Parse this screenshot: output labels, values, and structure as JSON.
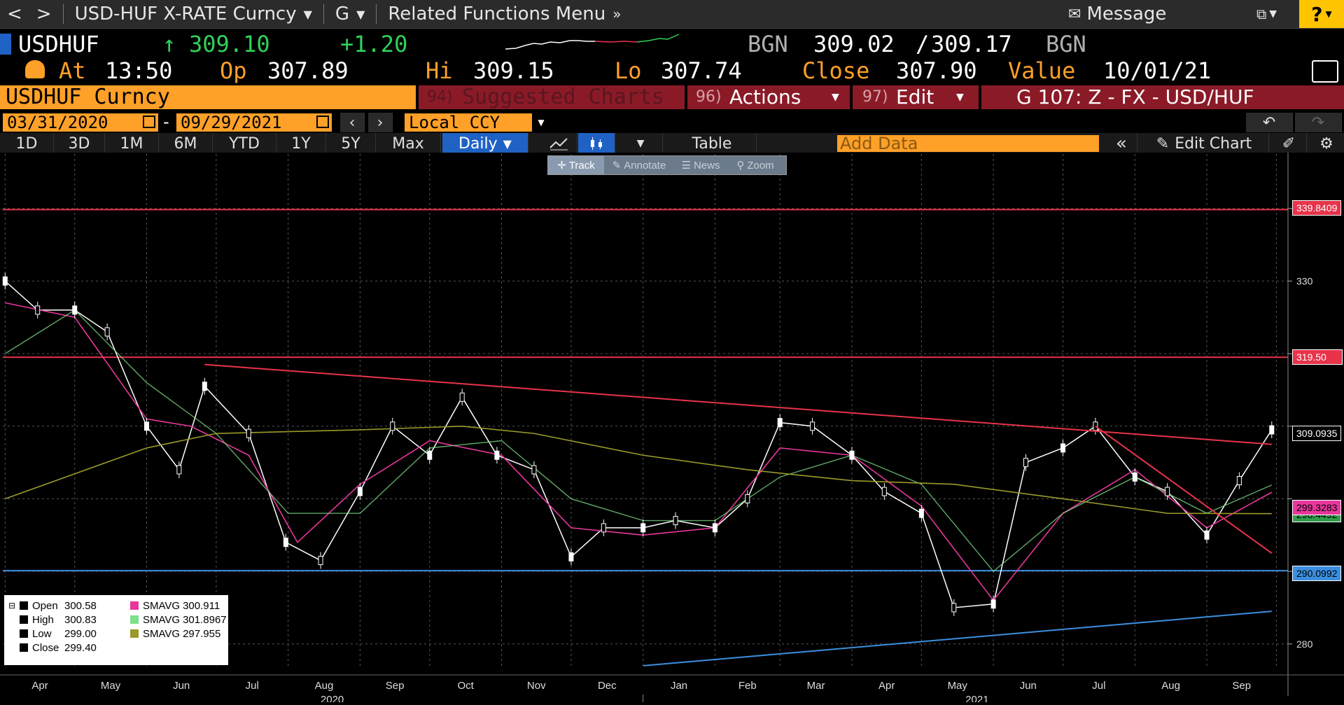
{
  "menubar": {
    "back": "<",
    "forward": ">",
    "security": "USD-HUF X-RATE Curncy",
    "function": "G",
    "related": "Related Functions Menu",
    "message": "Message",
    "help": "?"
  },
  "quote": {
    "ticker": "USDHUF",
    "last": "309.10",
    "last_arrow": "↑",
    "change": "+1.20",
    "source1": "BGN",
    "bid": "309.02",
    "ask": "309.17",
    "source2": "BGN",
    "at_label": "At",
    "time": "13:50",
    "op_label": "Op",
    "open": "307.89",
    "hi_label": "Hi",
    "high": "309.15",
    "lo_label": "Lo",
    "low": "307.74",
    "close_label": "Close",
    "close": "307.90",
    "value_label": "Value",
    "value_date": "10/01/21"
  },
  "bars": {
    "security": "USDHUF Curncy",
    "suggested_num": "94)",
    "suggested": "Suggested Charts",
    "actions_num": "96)",
    "actions": "Actions",
    "edit_num": "97)",
    "edit": "Edit",
    "template": "G 107: Z - FX - USD/HUF"
  },
  "dates": {
    "start": "03/31/2020",
    "dash": "-",
    "end": "09/29/2021",
    "currency": "Local CCY"
  },
  "periods": [
    "1D",
    "3D",
    "1M",
    "6M",
    "YTD",
    "1Y",
    "5Y",
    "Max"
  ],
  "frequency": "Daily",
  "toolbar": {
    "table": "Table",
    "add_data_placeholder": "Add Data",
    "edit_chart": "Edit Chart"
  },
  "tools": [
    "Track",
    "Annotate",
    "News",
    "Zoom"
  ],
  "colors": {
    "orange": "#ffa028",
    "red_bar": "#8b1a27",
    "price": "#ffffff",
    "sma_fast": "#e8369c",
    "sma_mid": "#7de08a",
    "sma_slow": "#9a9a2a",
    "resistance": "#e8334a",
    "support": "#3b8fe0"
  },
  "axis_tags": {
    "r1": "339.8409",
    "r2": "319.50",
    "last": "309.0935",
    "sma": "299.3283",
    "sma2": "298.4492",
    "support": "290.0992"
  },
  "legend": {
    "open_label": "Open",
    "open": "300.58",
    "high_label": "High",
    "high": "300.83",
    "low_label": "Low",
    "low": "299.00",
    "close_label": "Close",
    "close": "299.40",
    "sma1_label": "SMAVG",
    "sma1": "300.911",
    "sma2_label": "SMAVG",
    "sma2": "301.8967",
    "sma3_label": "SMAVG",
    "sma3": "297.955"
  },
  "chart_data": {
    "type": "line",
    "subtype": "candlestick",
    "x_months": [
      "Apr",
      "May",
      "Jun",
      "Jul",
      "Aug",
      "Sep",
      "Oct",
      "Nov",
      "Dec",
      "Jan",
      "Feb",
      "Mar",
      "Apr",
      "May",
      "Jun",
      "Jul",
      "Aug",
      "Sep"
    ],
    "x_years": [
      "2020",
      "2021"
    ],
    "y_ticks": [
      280,
      290,
      300,
      310,
      320,
      330,
      340
    ],
    "y_tick_labels": [
      "280",
      "",
      "",
      "",
      "",
      "330",
      ""
    ],
    "ylim": [
      276.7,
      347.5
    ],
    "grid": true,
    "series": [
      {
        "name": "USDHUF",
        "x": [
          "2020-04-01",
          "2020-04-15",
          "2020-05-01",
          "2020-05-15",
          "2020-06-01",
          "2020-06-15",
          "2020-06-26",
          "2020-07-15",
          "2020-07-31",
          "2020-08-15",
          "2020-09-01",
          "2020-09-15",
          "2020-10-01",
          "2020-10-15",
          "2020-10-30",
          "2020-11-15",
          "2020-12-01",
          "2020-12-15",
          "2021-01-01",
          "2021-01-15",
          "2021-02-01",
          "2021-02-15",
          "2021-03-01",
          "2021-03-15",
          "2021-04-01",
          "2021-04-15",
          "2021-05-01",
          "2021-05-15",
          "2021-06-01",
          "2021-06-15",
          "2021-07-01",
          "2021-07-15",
          "2021-08-01",
          "2021-08-15",
          "2021-09-01",
          "2021-09-15",
          "2021-09-29"
        ],
        "y": [
          330.0,
          326.0,
          326.0,
          323.0,
          310.0,
          304.0,
          315.5,
          309.0,
          294.0,
          291.5,
          301.0,
          310.0,
          306.0,
          314.0,
          306.0,
          304.0,
          292.0,
          296.0,
          296.0,
          297.0,
          296.0,
          300.0,
          310.5,
          310.0,
          306.0,
          301.0,
          298.0,
          285.0,
          285.5,
          305.0,
          307.0,
          310.0,
          303.0,
          301.0,
          295.0,
          302.5,
          309.5
        ]
      },
      {
        "name": "SMAVG 300.911",
        "x": [
          "2020-04-01",
          "2020-05-01",
          "2020-06-01",
          "2020-06-20",
          "2020-07-15",
          "2020-08-05",
          "2020-09-01",
          "2020-10-01",
          "2020-11-01",
          "2020-12-01",
          "2021-01-01",
          "2021-02-01",
          "2021-03-01",
          "2021-04-01",
          "2021-05-01",
          "2021-06-01",
          "2021-07-01",
          "2021-08-01",
          "2021-09-01",
          "2021-09-29"
        ],
        "y": [
          327.0,
          325.0,
          311.0,
          310.0,
          306.0,
          294.0,
          302.0,
          308.0,
          306.0,
          296.0,
          295.0,
          296.0,
          307.0,
          306.0,
          299.0,
          286.0,
          298.0,
          304.0,
          296.0,
          300.9
        ]
      },
      {
        "name": "SMAVG 301.8967",
        "x": [
          "2020-04-01",
          "2020-05-01",
          "2020-06-01",
          "2020-07-01",
          "2020-08-01",
          "2020-09-01",
          "2020-10-01",
          "2020-11-01",
          "2020-12-01",
          "2021-01-01",
          "2021-02-01",
          "2021-03-01",
          "2021-04-01",
          "2021-05-01",
          "2021-06-01",
          "2021-07-01",
          "2021-08-01",
          "2021-09-01",
          "2021-09-29"
        ],
        "y": [
          320.0,
          326.0,
          316.0,
          309.0,
          298.0,
          298.0,
          307.0,
          308.0,
          300.0,
          297.0,
          297.0,
          303.0,
          306.0,
          302.0,
          290.0,
          298.0,
          303.0,
          298.0,
          301.9
        ]
      },
      {
        "name": "SMAVG 297.955",
        "x": [
          "2020-04-01",
          "2020-06-01",
          "2020-07-01",
          "2020-09-01",
          "2020-10-15",
          "2020-11-15",
          "2021-01-01",
          "2021-02-15",
          "2021-04-01",
          "2021-05-15",
          "2021-07-01",
          "2021-08-15",
          "2021-09-29"
        ],
        "y": [
          300.0,
          307.0,
          309.0,
          309.5,
          310.0,
          309.0,
          306.0,
          304.0,
          302.5,
          302.0,
          300.0,
          298.0,
          297.955
        ]
      }
    ],
    "trendlines": [
      {
        "x": [
          "2020-06-26",
          "2021-09-29"
        ],
        "y": [
          318.5,
          307.5
        ]
      },
      {
        "x": [
          "2021-07-15",
          "2021-09-29"
        ],
        "y": [
          310.0,
          292.5
        ]
      },
      {
        "x": [
          "2021-01-01",
          "2021-09-29"
        ],
        "y": [
          277.0,
          284.5
        ]
      }
    ],
    "horizontal_levels": [
      339.8409,
      319.5,
      290.0992
    ]
  }
}
